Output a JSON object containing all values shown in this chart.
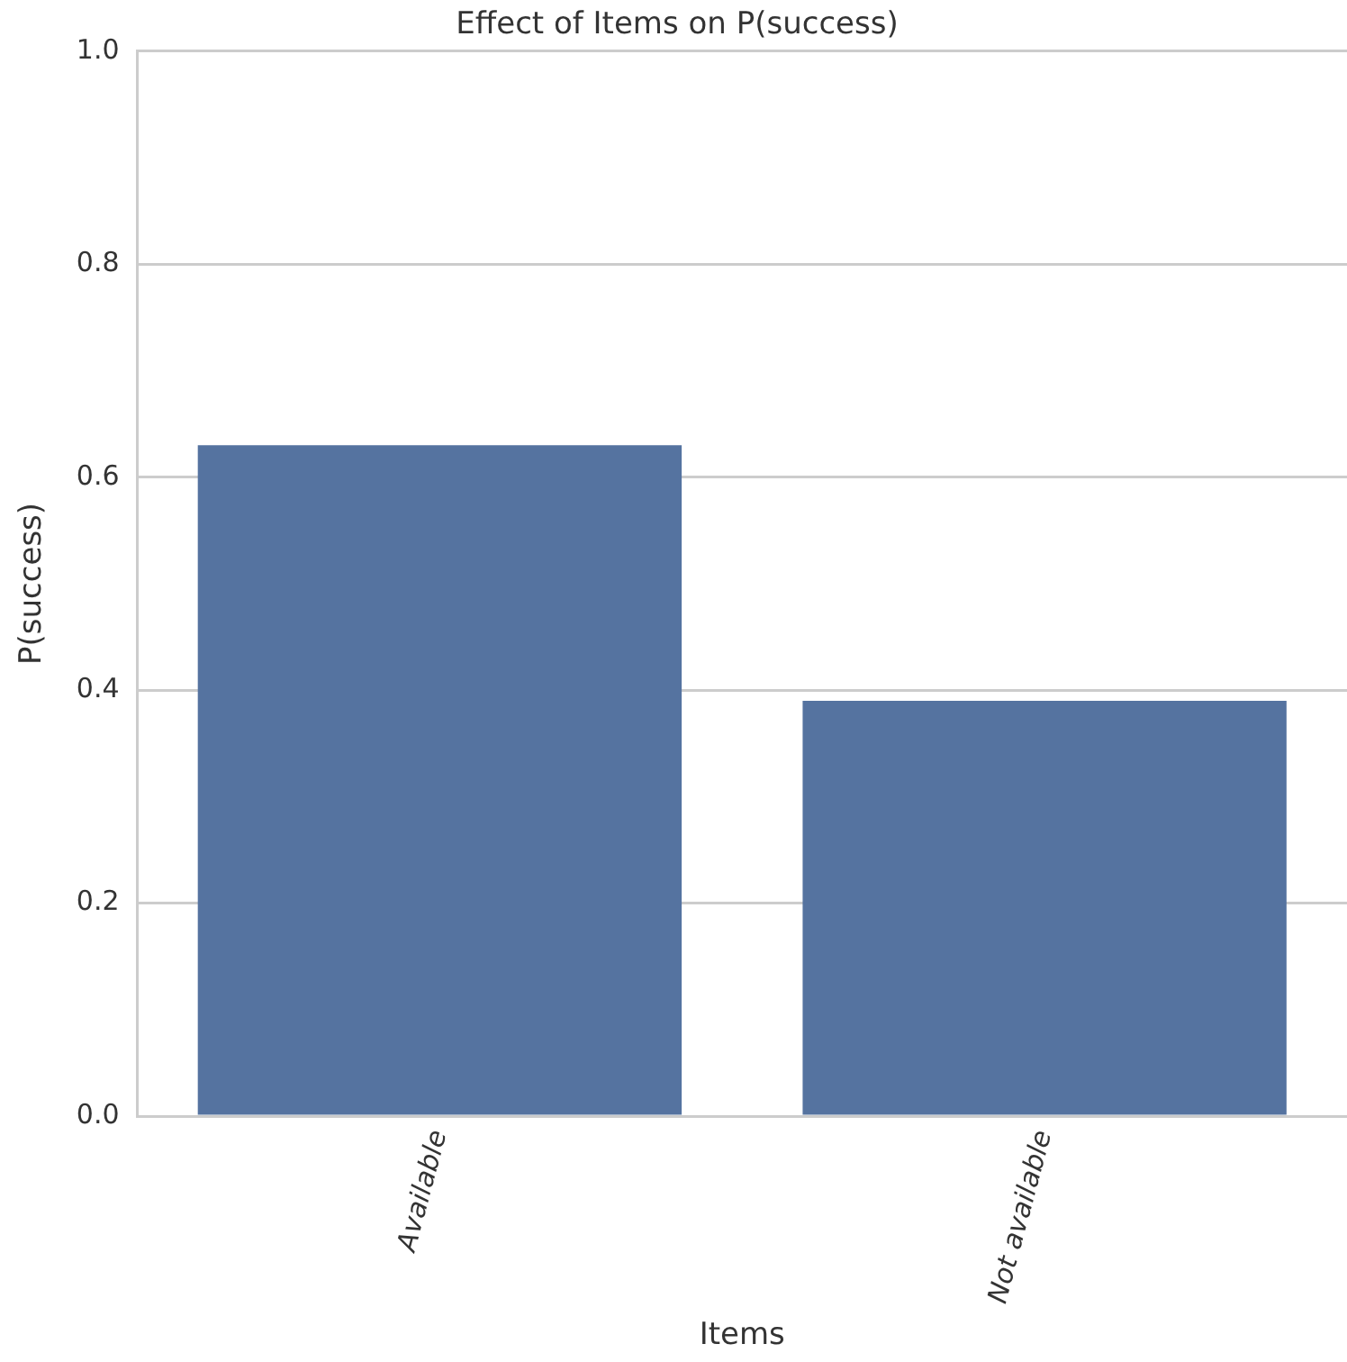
{
  "chart_data": {
    "type": "bar",
    "title": "Effect of Items on P(success)",
    "xlabel": "Items",
    "ylabel": "P(success)",
    "categories": [
      "Available",
      "Not available"
    ],
    "values": [
      0.63,
      0.39
    ],
    "color": "#5573a0",
    "ylim": [
      0,
      1
    ],
    "yticks": [
      {
        "value": 0,
        "label": "0.0"
      },
      {
        "value": 0.2,
        "label": "0.2"
      },
      {
        "value": 0.4,
        "label": "0.4"
      },
      {
        "value": 0.6,
        "label": "0.6"
      },
      {
        "value": 0.8,
        "label": "0.8"
      },
      {
        "value": 1,
        "label": "1.0"
      }
    ],
    "grid": "y",
    "legend": false
  }
}
